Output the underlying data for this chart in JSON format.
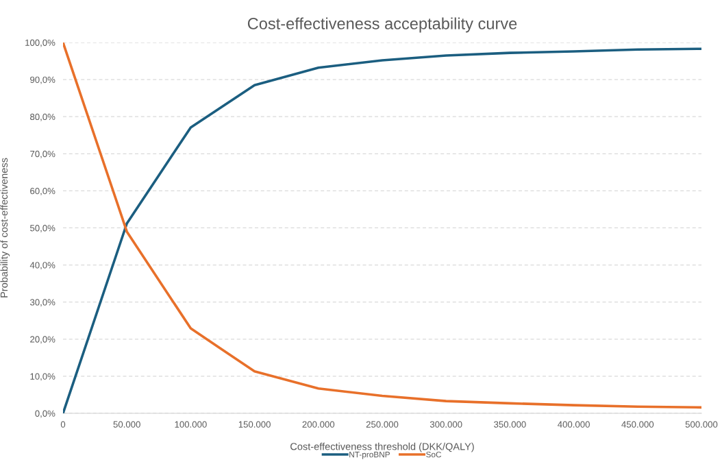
{
  "chart_data": {
    "type": "line",
    "title": "Cost-effectiveness acceptability curve",
    "xlabel": "Cost-effectiveness threshold (DKK/QALY)",
    "ylabel": "Probability of cost-effectiveness",
    "x": [
      0,
      50000,
      100000,
      150000,
      200000,
      250000,
      300000,
      350000,
      400000,
      450000,
      500000
    ],
    "series": [
      {
        "name": "NT-proBNP",
        "color": "#1b5e80",
        "values": [
          0,
          51.2,
          77.1,
          88.5,
          93.2,
          95.2,
          96.5,
          97.2,
          97.6,
          98.1,
          98.3
        ]
      },
      {
        "name": "SoC",
        "color": "#e8702a",
        "values": [
          100,
          49,
          22.9,
          11.3,
          6.7,
          4.7,
          3.3,
          2.7,
          2.2,
          1.8,
          1.6
        ]
      }
    ],
    "xlim": [
      0,
      500000
    ],
    "ylim": [
      0,
      100
    ],
    "xticks": [
      {
        "value": 0,
        "label": "0"
      },
      {
        "value": 50000,
        "label": "50.000"
      },
      {
        "value": 100000,
        "label": "100.000"
      },
      {
        "value": 150000,
        "label": "150.000"
      },
      {
        "value": 200000,
        "label": "200.000"
      },
      {
        "value": 250000,
        "label": "250.000"
      },
      {
        "value": 300000,
        "label": "300.000"
      },
      {
        "value": 350000,
        "label": "350.000"
      },
      {
        "value": 400000,
        "label": "400.000"
      },
      {
        "value": 450000,
        "label": "450.000"
      },
      {
        "value": 500000,
        "label": "500.000"
      }
    ],
    "yticks": [
      {
        "value": 0,
        "label": "0,0%"
      },
      {
        "value": 10,
        "label": "10,0%"
      },
      {
        "value": 20,
        "label": "20,0%"
      },
      {
        "value": 30,
        "label": "30,0%"
      },
      {
        "value": 40,
        "label": "40,0%"
      },
      {
        "value": 50,
        "label": "50,0%"
      },
      {
        "value": 60,
        "label": "60,0%"
      },
      {
        "value": 70,
        "label": "70,0%"
      },
      {
        "value": 80,
        "label": "80,0%"
      },
      {
        "value": 90,
        "label": "90,0%"
      },
      {
        "value": 100,
        "label": "100,0%"
      }
    ],
    "grid": "y",
    "legend": "bottom",
    "line_style": "solid",
    "marker": "none"
  }
}
